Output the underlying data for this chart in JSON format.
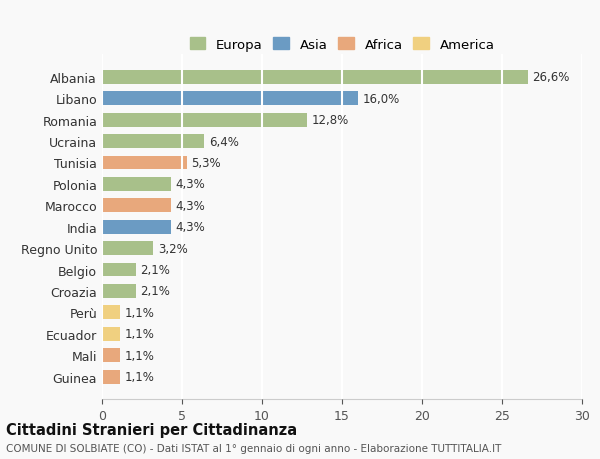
{
  "categories": [
    "Albania",
    "Libano",
    "Romania",
    "Ucraina",
    "Tunisia",
    "Polonia",
    "Marocco",
    "India",
    "Regno Unito",
    "Belgio",
    "Croazia",
    "Perù",
    "Ecuador",
    "Mali",
    "Guinea"
  ],
  "values": [
    26.6,
    16.0,
    12.8,
    6.4,
    5.3,
    4.3,
    4.3,
    4.3,
    3.2,
    2.1,
    2.1,
    1.1,
    1.1,
    1.1,
    1.1
  ],
  "labels": [
    "26,6%",
    "16,0%",
    "12,8%",
    "6,4%",
    "5,3%",
    "4,3%",
    "4,3%",
    "4,3%",
    "3,2%",
    "2,1%",
    "2,1%",
    "1,1%",
    "1,1%",
    "1,1%",
    "1,1%"
  ],
  "continents": [
    "Europa",
    "Asia",
    "Europa",
    "Europa",
    "Africa",
    "Europa",
    "Africa",
    "Asia",
    "Europa",
    "Europa",
    "Europa",
    "America",
    "America",
    "Africa",
    "Africa"
  ],
  "colors": {
    "Europa": "#a8c08a",
    "Asia": "#6b9bc3",
    "Africa": "#e8a87c",
    "America": "#f0d080"
  },
  "legend_order": [
    "Europa",
    "Asia",
    "Africa",
    "America"
  ],
  "xlim": [
    0,
    30
  ],
  "xticks": [
    0,
    5,
    10,
    15,
    20,
    25,
    30
  ],
  "title": "Cittadini Stranieri per Cittadinanza",
  "subtitle": "COMUNE DI SOLBIATE (CO) - Dati ISTAT al 1° gennaio di ogni anno - Elaborazione TUTTITALIA.IT",
  "bg_color": "#f9f9f9",
  "grid_color": "#ffffff",
  "bar_height": 0.65
}
